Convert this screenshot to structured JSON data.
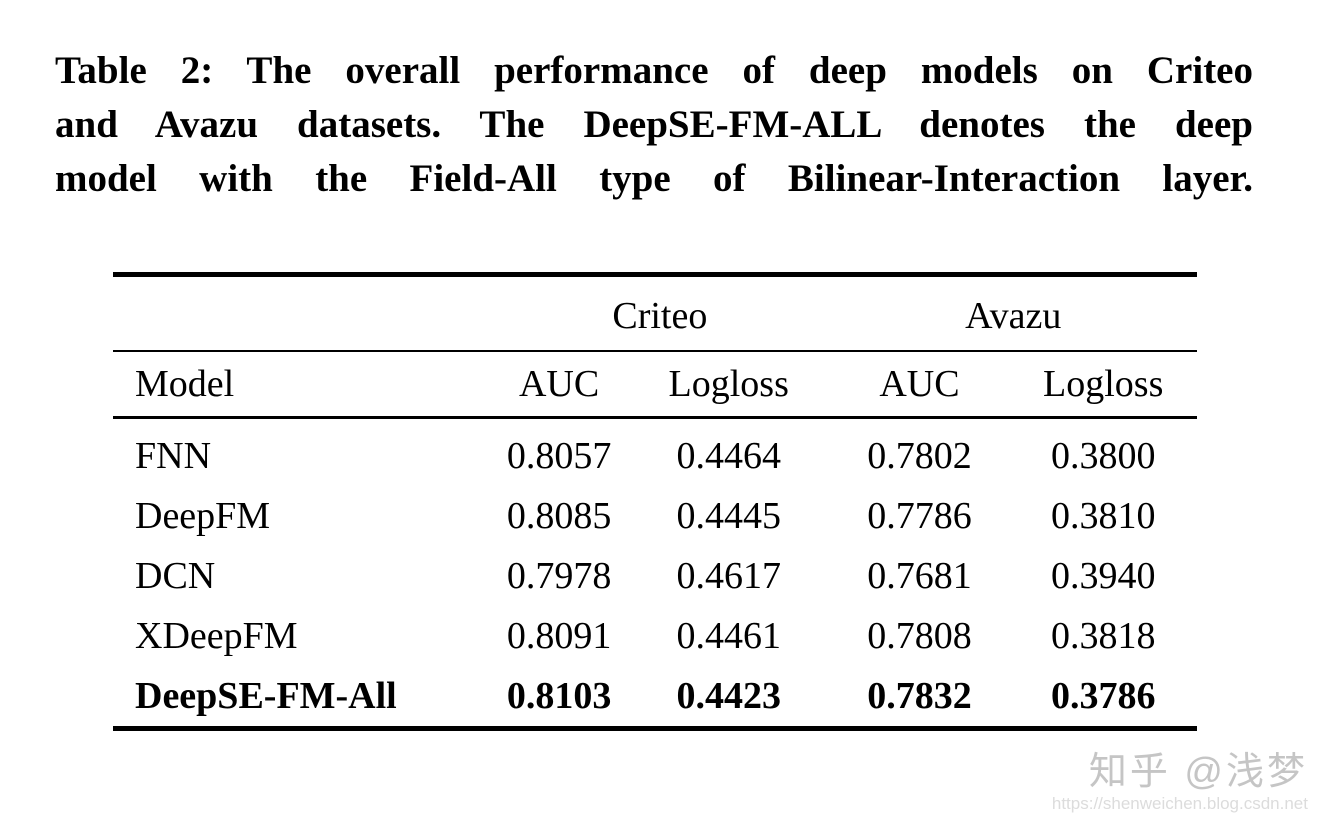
{
  "caption": {
    "line1": "Table 2: The overall performance of deep models on Criteo",
    "line2": "and Avazu datasets. The DeepSE-FM-ALL denotes the deep",
    "line3": "model with the Field-All type of Bilinear-Interaction layer."
  },
  "table": {
    "dataset_groups": {
      "criteo": "Criteo",
      "avazu": "Avazu"
    },
    "columns": {
      "model": "Model",
      "auc": "AUC",
      "logloss": "Logloss"
    },
    "rows": [
      {
        "model": "FNN",
        "values": [
          "0.8057",
          "0.4464",
          "0.7802",
          "0.3800"
        ],
        "bold": false
      },
      {
        "model": "DeepFM",
        "values": [
          "0.8085",
          "0.4445",
          "0.7786",
          "0.3810"
        ],
        "bold": false
      },
      {
        "model": "DCN",
        "values": [
          "0.7978",
          "0.4617",
          "0.7681",
          "0.3940"
        ],
        "bold": false
      },
      {
        "model": "XDeepFM",
        "values": [
          "0.8091",
          "0.4461",
          "0.7808",
          "0.3818"
        ],
        "bold": false
      },
      {
        "model": "DeepSE-FM-All",
        "values": [
          "0.8103",
          "0.4423",
          "0.7832",
          "0.3786"
        ],
        "bold": true
      }
    ]
  },
  "watermark": {
    "site": "知乎 @浅梦",
    "url": "https://shenweichen.blog.csdn.net"
  },
  "colors": {
    "background": "#ffffff",
    "text": "#000000",
    "rule": "#000000",
    "watermark_site": "#c5c5c5",
    "watermark_url": "#dcdcdc"
  }
}
